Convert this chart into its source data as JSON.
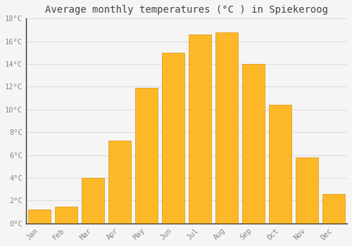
{
  "months": [
    "Jan",
    "Feb",
    "Mar",
    "Apr",
    "May",
    "Jun",
    "Jul",
    "Aug",
    "Sep",
    "Oct",
    "Nov",
    "Dec"
  ],
  "values": [
    1.2,
    1.5,
    4.0,
    7.3,
    11.9,
    15.0,
    16.6,
    16.8,
    14.0,
    10.4,
    5.8,
    2.6
  ],
  "bar_color": "#FDB827",
  "bar_edge_color": "#E09010",
  "background_color": "#F5F5F5",
  "title": "Average monthly temperatures (°C ) in Spiekeroog",
  "title_fontsize": 10,
  "tick_label_color": "#888888",
  "title_color": "#444444",
  "ylim": [
    0,
    18
  ],
  "yticks": [
    0,
    2,
    4,
    6,
    8,
    10,
    12,
    14,
    16,
    18
  ],
  "ytick_labels": [
    "0°C",
    "2°C",
    "4°C",
    "6°C",
    "8°C",
    "10°C",
    "12°C",
    "14°C",
    "16°C",
    "18°C"
  ],
  "grid_color": "#DDDDDD",
  "font_family": "monospace",
  "bar_width": 0.85
}
